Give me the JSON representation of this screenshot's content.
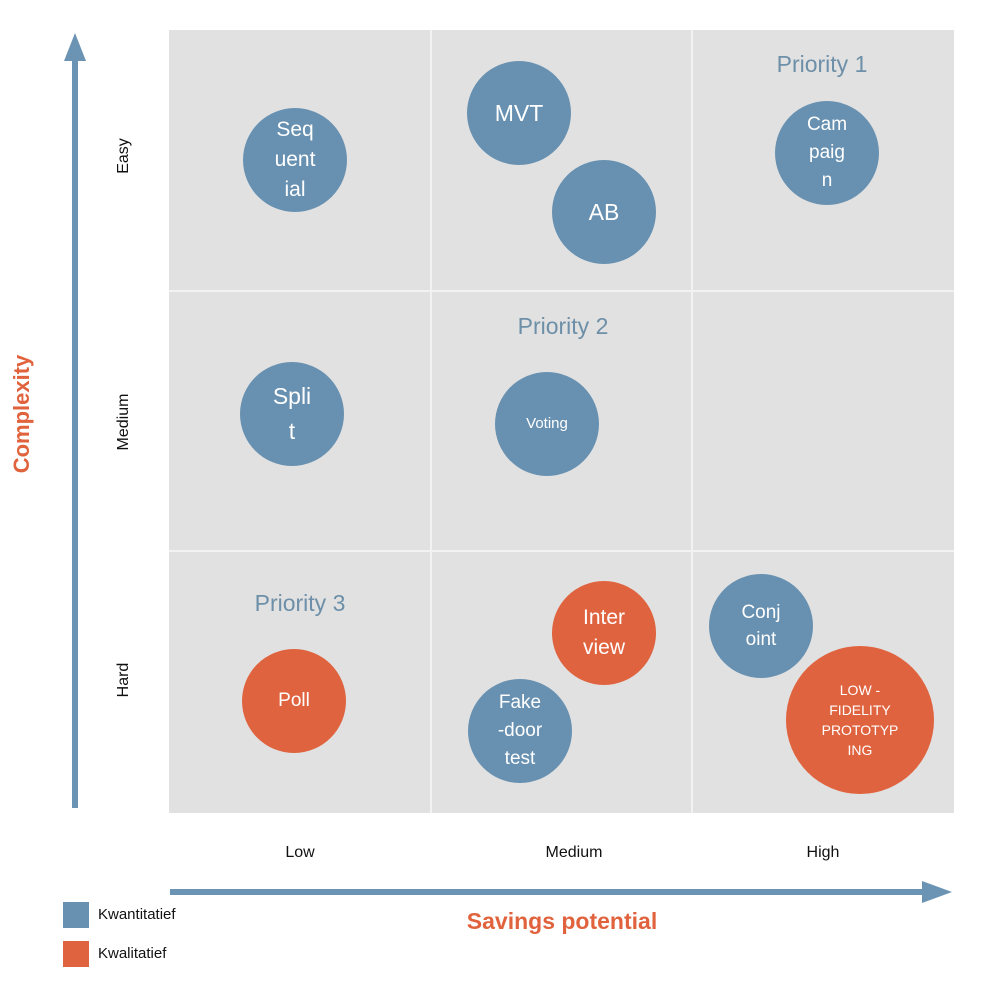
{
  "axes": {
    "y_title": "Complexity",
    "x_title": "Savings potential",
    "rows": [
      "Easy",
      "Medium",
      "Hard"
    ],
    "cols": [
      "Low",
      "Medium",
      "High"
    ]
  },
  "priorities": [
    "Priority 1",
    "Priority 2",
    "Priority 3"
  ],
  "bubbles": {
    "sequential": "Seq\nuent\nial",
    "mvt": "MVT",
    "ab": "AB",
    "campaign": "Cam\npaig\nn",
    "split": "Spli\nt",
    "voting": "Voting",
    "poll": "Poll",
    "interview": "Inter\nview",
    "fake_door": "Fake\n-door\ntest",
    "conjoint": "Conj\noint",
    "low_fidelity": "LOW -\nFIDELITY\nPROTOTYP\nING"
  },
  "legend": [
    {
      "label": "Kwantitatief",
      "color": "#6891b1"
    },
    {
      "label": "Kwalitatief",
      "color": "#e0633f"
    }
  ],
  "colors": {
    "quantitative": "#6891b1",
    "qualitative": "#e0633f",
    "axis": "#6b93b3",
    "title": "#e0633d",
    "priority": "#6d8fa8"
  }
}
